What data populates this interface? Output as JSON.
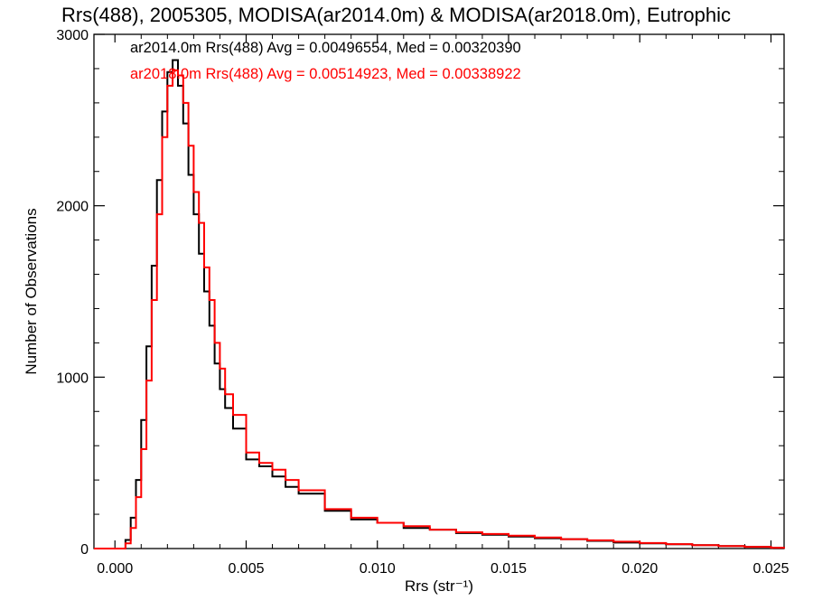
{
  "chart_data": {
    "type": "line",
    "title": "Rrs(488), 2005305, MODISA(ar2014.0m) & MODISA(ar2018.0m), Eutrophic",
    "xlabel": "Rrs (str⁻¹)",
    "ylabel": "Number of Observations",
    "xlim": [
      -0.0008,
      0.0255
    ],
    "ylim": [
      0,
      3000
    ],
    "x_ticks": [
      "0.000",
      "0.005",
      "0.010",
      "0.015",
      "0.020",
      "0.025"
    ],
    "x_tick_values": [
      0.0,
      0.005,
      0.01,
      0.015,
      0.02,
      0.025
    ],
    "y_ticks": [
      "0",
      "1000",
      "2000",
      "3000"
    ],
    "y_tick_values": [
      0,
      1000,
      2000,
      3000
    ],
    "legend_placement": "top-left",
    "grid": false,
    "series": [
      {
        "name": "ar2014.0m Rrs(488) Avg = 0.00496554, Med = 0.00320390",
        "color": "#000000",
        "x": [
          -0.0008,
          0.0002,
          0.0004,
          0.0006,
          0.0008,
          0.001,
          0.0012,
          0.0014,
          0.0016,
          0.0018,
          0.002,
          0.0022,
          0.0024,
          0.0026,
          0.0028,
          0.003,
          0.0032,
          0.0034,
          0.0036,
          0.0038,
          0.004,
          0.0042,
          0.0045,
          0.005,
          0.0055,
          0.006,
          0.0065,
          0.007,
          0.008,
          0.009,
          0.01,
          0.011,
          0.012,
          0.013,
          0.014,
          0.015,
          0.016,
          0.017,
          0.018,
          0.019,
          0.02,
          0.021,
          0.022,
          0.023,
          0.024,
          0.025,
          0.0255
        ],
        "values": [
          0,
          0,
          50,
          180,
          400,
          750,
          1180,
          1650,
          2150,
          2550,
          2780,
          2850,
          2700,
          2480,
          2180,
          1950,
          1720,
          1500,
          1300,
          1080,
          930,
          820,
          700,
          520,
          480,
          420,
          360,
          320,
          220,
          170,
          150,
          120,
          110,
          90,
          80,
          70,
          60,
          55,
          45,
          35,
          30,
          25,
          20,
          15,
          10,
          5,
          0
        ]
      },
      {
        "name": "ar2018.0m Rrs(488) Avg = 0.00514923, Med = 0.00338922",
        "color": "#ff0000",
        "x": [
          -0.0008,
          0.0002,
          0.0004,
          0.0006,
          0.0008,
          0.001,
          0.0012,
          0.0014,
          0.0016,
          0.0018,
          0.002,
          0.0022,
          0.0024,
          0.0026,
          0.0028,
          0.003,
          0.0032,
          0.0034,
          0.0036,
          0.0038,
          0.004,
          0.0042,
          0.0045,
          0.005,
          0.0055,
          0.006,
          0.0065,
          0.007,
          0.008,
          0.009,
          0.01,
          0.011,
          0.012,
          0.013,
          0.014,
          0.015,
          0.016,
          0.017,
          0.018,
          0.019,
          0.02,
          0.021,
          0.022,
          0.023,
          0.024,
          0.025,
          0.0255
        ],
        "values": [
          0,
          0,
          30,
          120,
          300,
          580,
          980,
          1450,
          1950,
          2400,
          2700,
          2790,
          2760,
          2600,
          2350,
          2080,
          1900,
          1640,
          1450,
          1200,
          1050,
          900,
          780,
          560,
          500,
          460,
          400,
          340,
          230,
          180,
          150,
          130,
          110,
          95,
          85,
          75,
          65,
          55,
          48,
          40,
          32,
          26,
          20,
          14,
          10,
          5,
          0
        ]
      }
    ]
  }
}
